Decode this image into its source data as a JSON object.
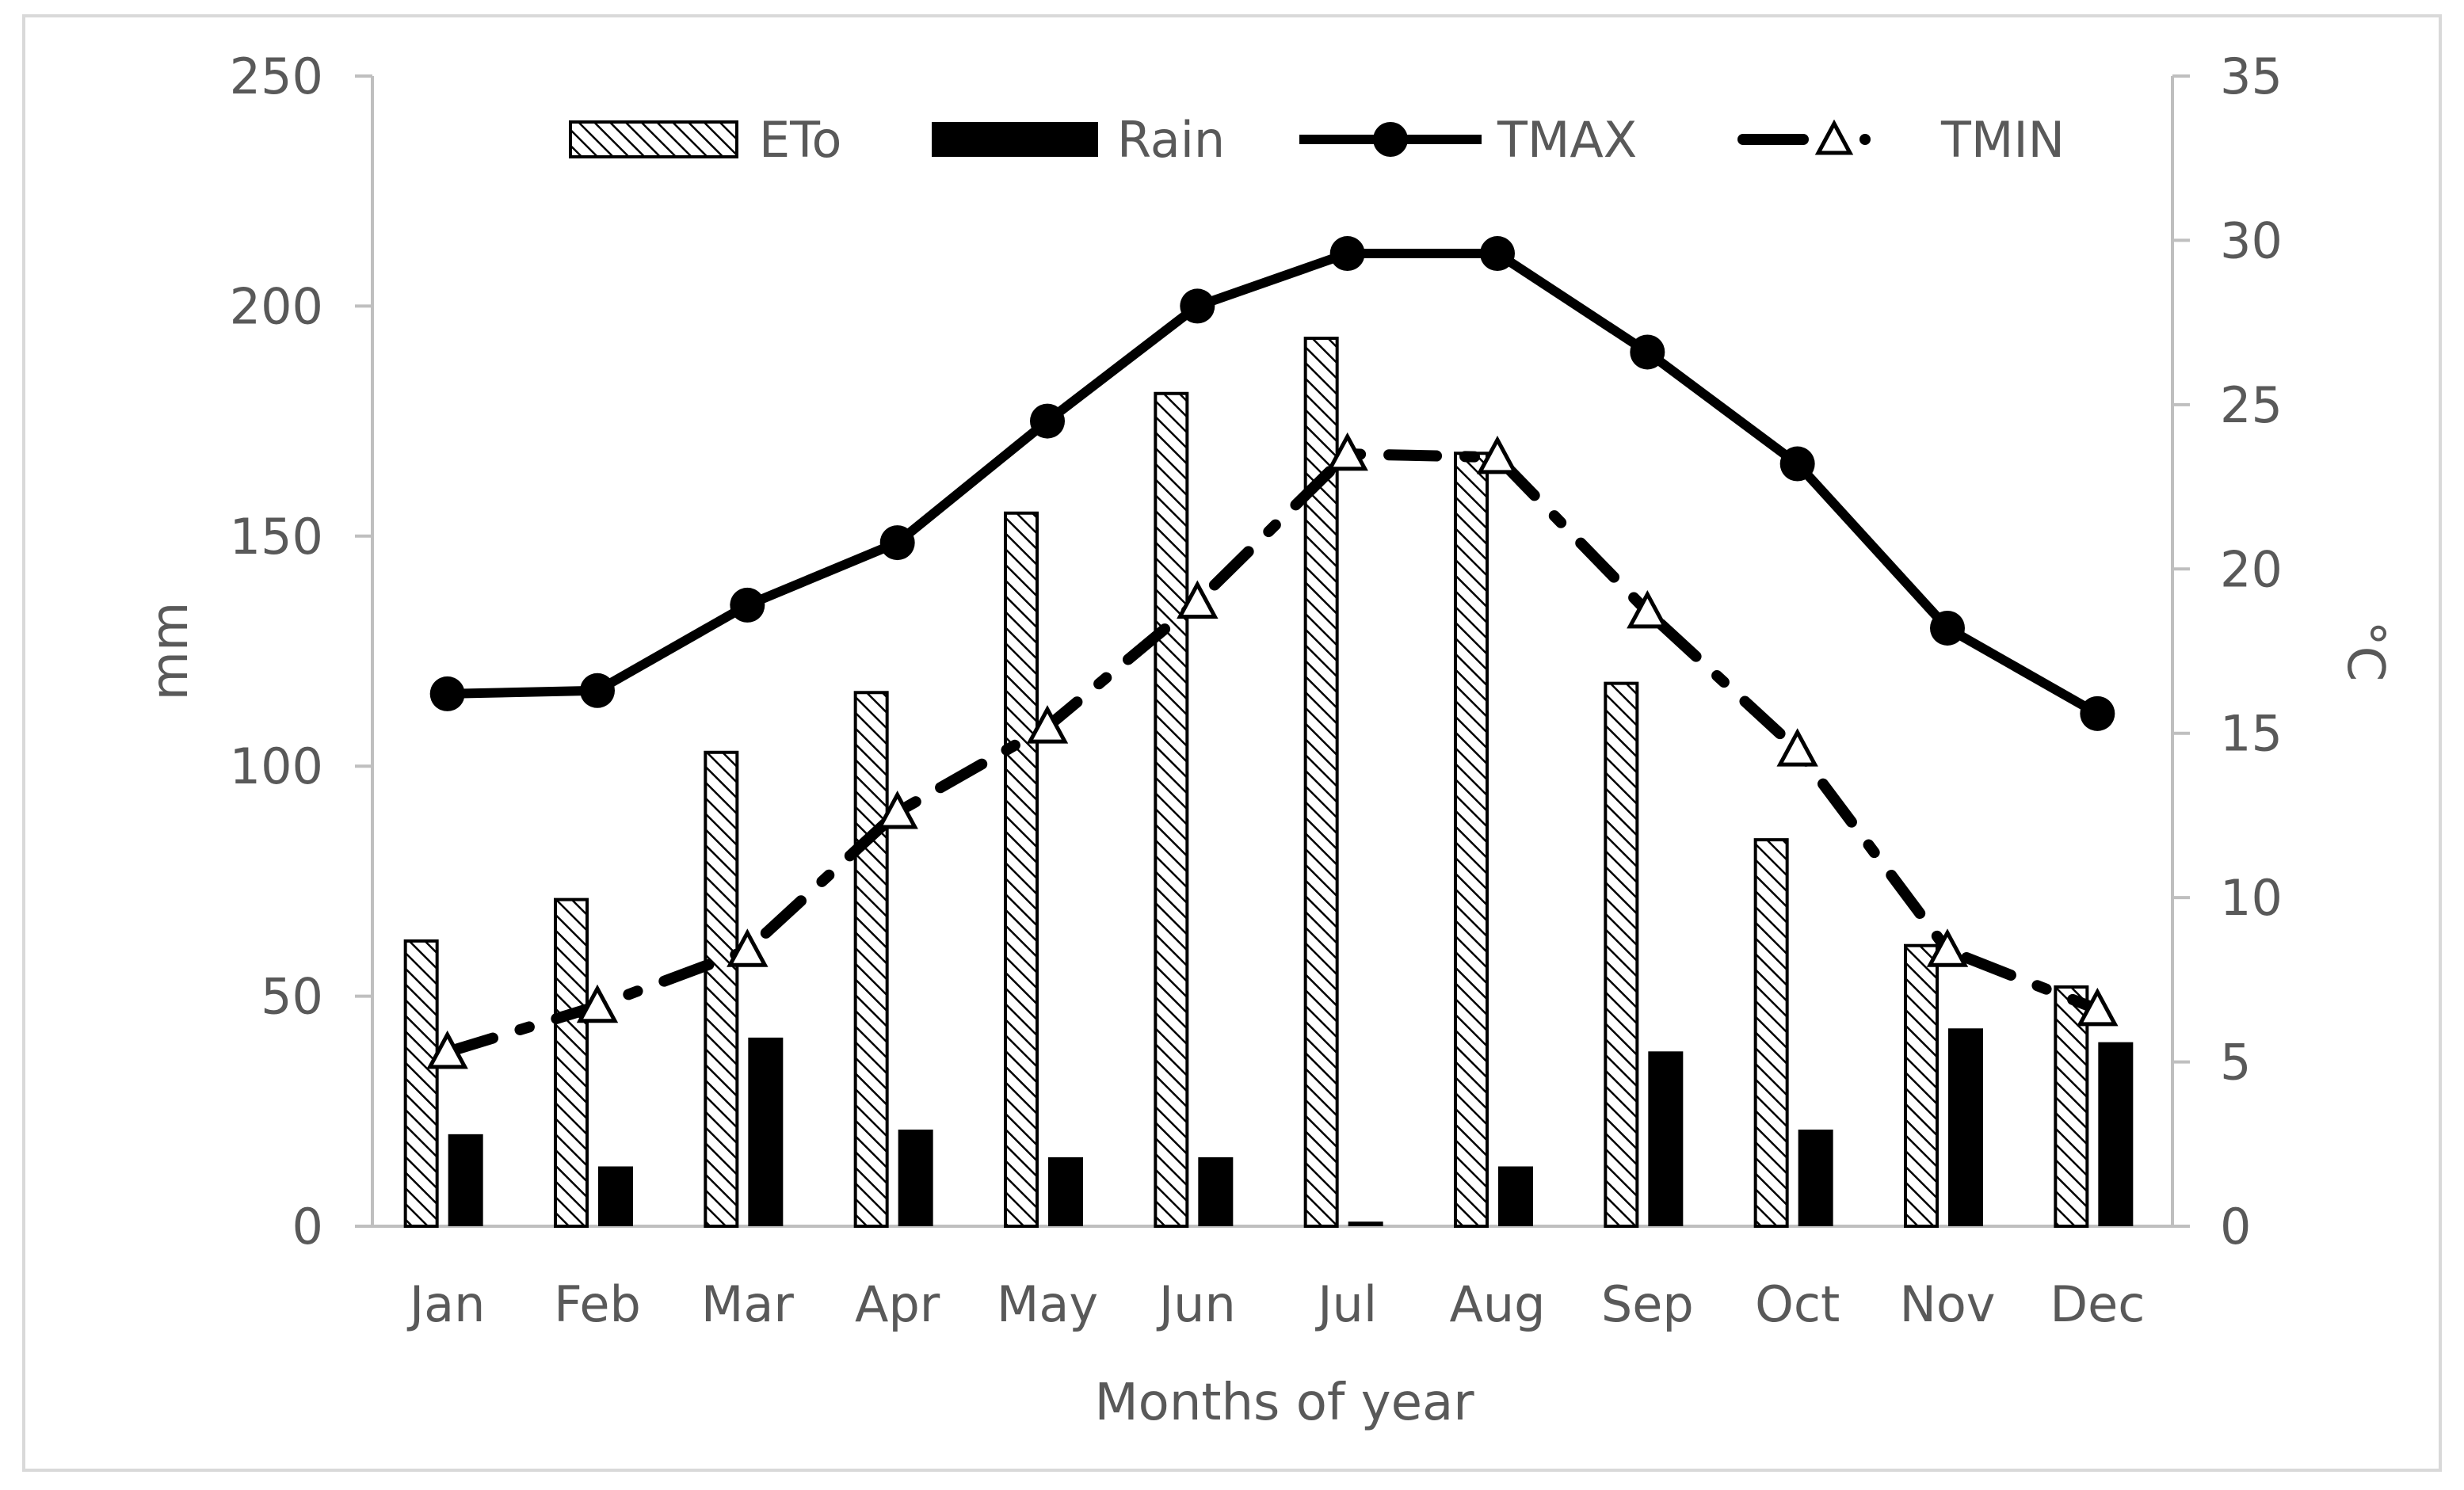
{
  "chart_data": {
    "type": "bar+line",
    "title": "",
    "categories": [
      "Jan",
      "Feb",
      "Mar",
      "Apr",
      "May",
      "Jun",
      "Jul",
      "Aug",
      "Sep",
      "Oct",
      "Nov",
      "Dec"
    ],
    "xlabel": "Months of year",
    "ylabel_left": "mm",
    "ylabel_right": "°C",
    "ylim_left": [
      0,
      250
    ],
    "yticks_left": [
      "0",
      "50",
      "100",
      "150",
      "200",
      "250"
    ],
    "ylim_right": [
      0,
      35
    ],
    "yticks_right": [
      "0",
      "5",
      "10",
      "15",
      "20",
      "25",
      "30",
      "35"
    ],
    "grid": false,
    "legend_position": "top",
    "series": [
      {
        "name": "ETo",
        "type": "bar",
        "axis": "left",
        "style": "hatched",
        "values": [
          62,
          71,
          103,
          116,
          155,
          181,
          193,
          168,
          118,
          84,
          61,
          52
        ]
      },
      {
        "name": "Rain",
        "type": "bar",
        "axis": "left",
        "style": "solid",
        "values": [
          20,
          13,
          41,
          21,
          15,
          15,
          1,
          13,
          38,
          21,
          43,
          40
        ]
      },
      {
        "name": "TMAX",
        "type": "line",
        "axis": "right",
        "style": "solid-circle",
        "values": [
          16.2,
          16.3,
          18.9,
          20.8,
          24.5,
          28.0,
          29.6,
          29.6,
          26.6,
          23.2,
          18.2,
          15.6
        ]
      },
      {
        "name": "TMIN",
        "type": "line",
        "axis": "right",
        "style": "dashdot-triangle",
        "values": [
          5.3,
          6.7,
          8.4,
          12.6,
          15.2,
          19.0,
          23.5,
          23.4,
          18.7,
          14.5,
          8.4,
          6.6
        ]
      }
    ],
    "colors": {
      "axis": "#bfbfbf",
      "text": "#595959",
      "series": "#000000",
      "marker_fill": "#ffffff",
      "frame": "#d9d9d9"
    }
  }
}
